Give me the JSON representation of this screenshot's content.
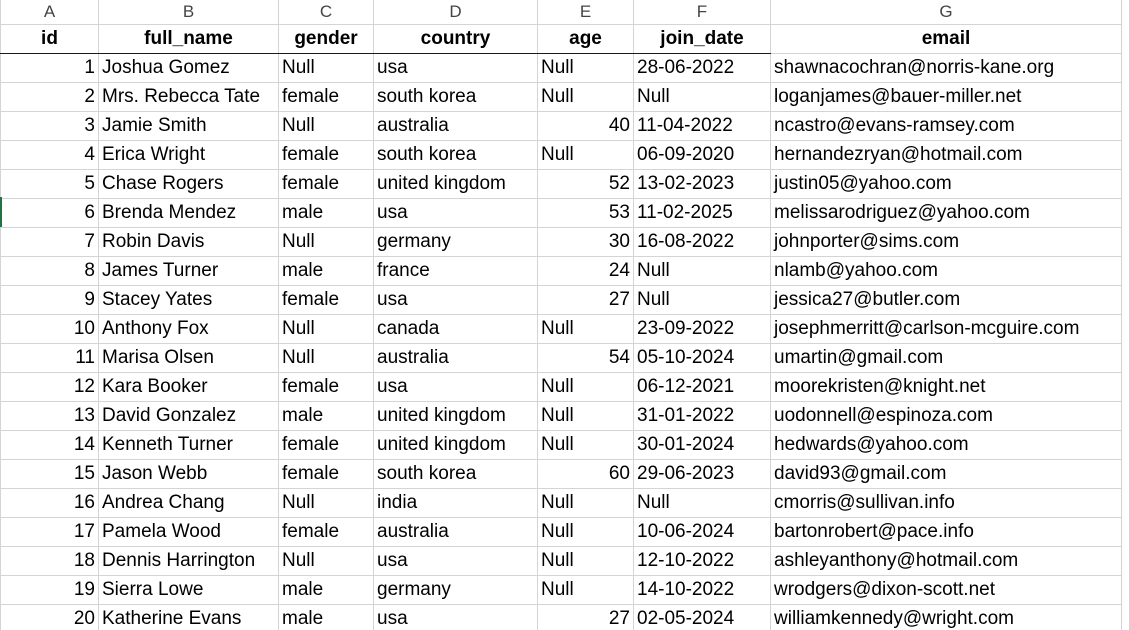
{
  "column_letters": [
    "A",
    "B",
    "C",
    "D",
    "E",
    "F",
    "G"
  ],
  "headers": [
    "id",
    "full_name",
    "gender",
    "country",
    "age",
    "join_date",
    "email"
  ],
  "rows": [
    [
      "1",
      "Joshua Gomez",
      "Null",
      "usa",
      "Null",
      "28-06-2022",
      "shawnacochran@norris-kane.org"
    ],
    [
      "2",
      "Mrs. Rebecca Tate",
      "female",
      "south korea",
      "Null",
      "Null",
      "loganjames@bauer-miller.net"
    ],
    [
      "3",
      "Jamie Smith",
      "Null",
      "australia",
      "40",
      "11-04-2022",
      "ncastro@evans-ramsey.com"
    ],
    [
      "4",
      "Erica Wright",
      "female",
      "south korea",
      "Null",
      "06-09-2020",
      "hernandezryan@hotmail.com"
    ],
    [
      "5",
      "Chase Rogers",
      "female",
      "united kingdom",
      "52",
      "13-02-2023",
      "justin05@yahoo.com"
    ],
    [
      "6",
      "Brenda Mendez",
      "male",
      "usa",
      "53",
      "11-02-2025",
      "melissarodriguez@yahoo.com"
    ],
    [
      "7",
      "Robin Davis",
      "Null",
      "germany",
      "30",
      "16-08-2022",
      "johnporter@sims.com"
    ],
    [
      "8",
      "James Turner",
      "male",
      "france",
      "24",
      "Null",
      "nlamb@yahoo.com"
    ],
    [
      "9",
      "Stacey Yates",
      "female",
      "usa",
      "27",
      "Null",
      "jessica27@butler.com"
    ],
    [
      "10",
      "Anthony Fox",
      "Null",
      "canada",
      "Null",
      "23-09-2022",
      "josephmerritt@carlson-mcguire.com"
    ],
    [
      "11",
      "Marisa Olsen",
      "Null",
      "australia",
      "54",
      "05-10-2024",
      "umartin@gmail.com"
    ],
    [
      "12",
      "Kara Booker",
      "female",
      "usa",
      "Null",
      "06-12-2021",
      "moorekristen@knight.net"
    ],
    [
      "13",
      "David Gonzalez",
      "male",
      "united kingdom",
      "Null",
      "31-01-2022",
      "uodonnell@espinoza.com"
    ],
    [
      "14",
      "Kenneth Turner",
      "female",
      "united kingdom",
      "Null",
      "30-01-2024",
      "hedwards@yahoo.com"
    ],
    [
      "15",
      "Jason Webb",
      "female",
      "south korea",
      "60",
      "29-06-2023",
      "david93@gmail.com"
    ],
    [
      "16",
      "Andrea Chang",
      "Null",
      "india",
      "Null",
      "Null",
      "cmorris@sullivan.info"
    ],
    [
      "17",
      "Pamela Wood",
      "female",
      "australia",
      "Null",
      "10-06-2024",
      "bartonrobert@pace.info"
    ],
    [
      "18",
      "Dennis Harrington",
      "Null",
      "usa",
      "Null",
      "12-10-2022",
      "ashleyanthony@hotmail.com"
    ],
    [
      "19",
      "Sierra Lowe",
      "male",
      "germany",
      "Null",
      "14-10-2022",
      "wrodgers@dixon-scott.net"
    ],
    [
      "20",
      "Katherine Evans",
      "male",
      "usa",
      "27",
      "02-05-2024",
      "williamkennedy@wright.com"
    ]
  ]
}
